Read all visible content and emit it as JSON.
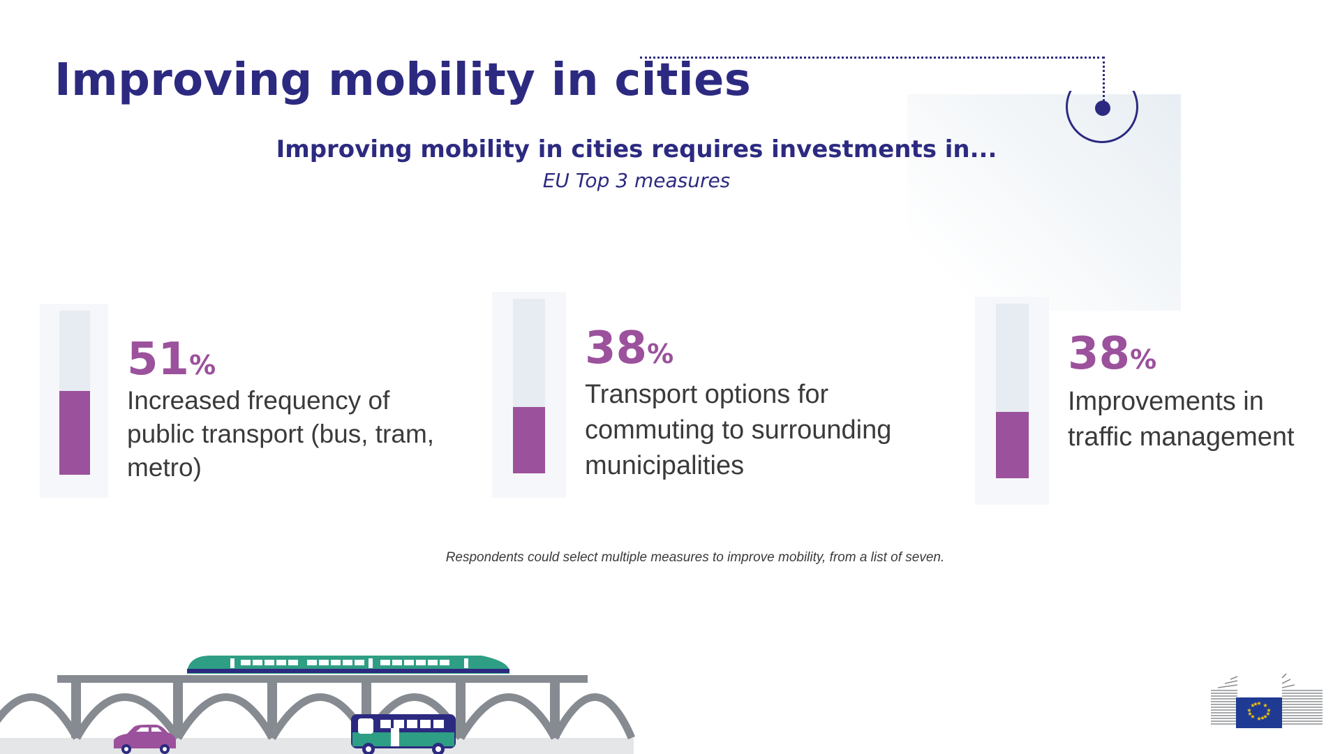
{
  "title": "Improving mobility in cities",
  "subtitle": "Improving mobility in cities requires investments in...",
  "sub_italic": "EU Top 3 measures",
  "note": "Respondents could select multiple measures to improve mobility, from a list of seven.",
  "measures": [
    {
      "value": "51",
      "unit": "%",
      "label": "Increased frequency of public transport (bus, tram, metro)"
    },
    {
      "value": "38",
      "unit": "%",
      "label": "Transport options for commuting to surrounding municipalities"
    },
    {
      "value": "38",
      "unit": "%",
      "label": "Improvements in traffic management"
    }
  ],
  "chart_data": {
    "type": "bar",
    "categories": [
      "Increased frequency of public transport (bus, tram, metro)",
      "Transport options for commuting to surrounding municipalities",
      "Improvements in traffic management"
    ],
    "values": [
      51,
      38,
      38
    ],
    "ylim": [
      0,
      100
    ],
    "unit": "%",
    "title": "Improving mobility in cities",
    "subtitle": "Improving mobility in cities requires investments in...",
    "series_color": "#9b519b",
    "track_color": "#e6ecf1"
  },
  "colors": {
    "accent": "#2c2a80",
    "bar": "#9b519b",
    "text": "#3a3a3a"
  },
  "icons": [
    "target-icon",
    "train-icon",
    "bus-icon",
    "car-icon",
    "viaduct-icon",
    "eu-commission-logo"
  ]
}
